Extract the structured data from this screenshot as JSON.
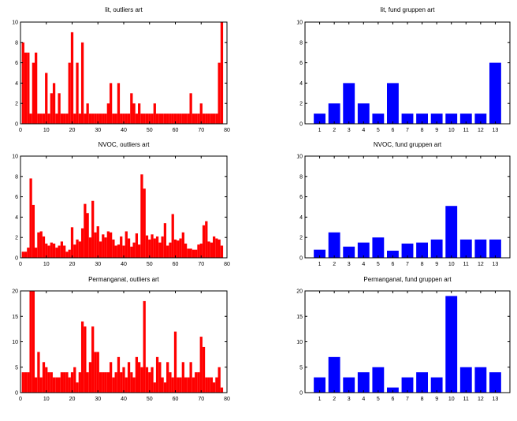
{
  "chart_data": [
    {
      "type": "bar",
      "title": "lit, outliers art",
      "color": "#ff0000",
      "xlim": [
        0,
        80
      ],
      "ylim": [
        0,
        10
      ],
      "xticks": [
        0,
        10,
        20,
        30,
        40,
        50,
        60,
        70,
        80
      ],
      "yticks": [
        0,
        2,
        4,
        6,
        8,
        10
      ],
      "x": [
        1,
        2,
        3,
        4,
        5,
        6,
        7,
        8,
        9,
        10,
        11,
        12,
        13,
        14,
        15,
        16,
        17,
        18,
        19,
        20,
        21,
        22,
        23,
        24,
        25,
        26,
        27,
        28,
        29,
        30,
        31,
        32,
        33,
        34,
        35,
        36,
        37,
        38,
        39,
        40,
        41,
        42,
        43,
        44,
        45,
        46,
        47,
        48,
        49,
        50,
        51,
        52,
        53,
        54,
        55,
        56,
        57,
        58,
        59,
        60,
        61,
        62,
        63,
        64,
        65,
        66,
        67,
        68,
        69,
        70,
        71,
        72,
        73,
        74,
        75,
        76,
        77,
        78
      ],
      "values": [
        8,
        7,
        7,
        1,
        6,
        7,
        1,
        1,
        1,
        5,
        1,
        3,
        4,
        1,
        3,
        1,
        1,
        1,
        6,
        9,
        1,
        6,
        1,
        8,
        1,
        2,
        1,
        1,
        1,
        1,
        1,
        1,
        1,
        2,
        4,
        1,
        1,
        4,
        1,
        1,
        1,
        1,
        3,
        2,
        1,
        2,
        1,
        1,
        1,
        1,
        1,
        2,
        1,
        1,
        1,
        1,
        1,
        1,
        1,
        1,
        1,
        1,
        1,
        1,
        1,
        3,
        1,
        1,
        1,
        2,
        1,
        1,
        1,
        1,
        1,
        1,
        6,
        10
      ]
    },
    {
      "type": "bar",
      "title": "lit, fund gruppen art",
      "color": "#0000ff",
      "xlim": [
        0,
        14
      ],
      "ylim": [
        0,
        10
      ],
      "xticks": [
        1,
        2,
        3,
        4,
        5,
        6,
        7,
        8,
        9,
        10,
        11,
        12,
        13
      ],
      "yticks": [
        0,
        2,
        4,
        6,
        8,
        10
      ],
      "x": [
        1,
        2,
        3,
        4,
        5,
        6,
        7,
        8,
        9,
        10,
        11,
        12,
        13
      ],
      "values": [
        1,
        2,
        4,
        2,
        1,
        4,
        1,
        1,
        1,
        1,
        1,
        1,
        6
      ]
    },
    {
      "type": "bar",
      "title": "NVOC, outliers art",
      "color": "#ff0000",
      "xlim": [
        0,
        80
      ],
      "ylim": [
        0,
        10
      ],
      "xticks": [
        0,
        10,
        20,
        30,
        40,
        50,
        60,
        70,
        80
      ],
      "yticks": [
        0,
        2,
        4,
        6,
        8,
        10
      ],
      "x": [
        1,
        2,
        3,
        4,
        5,
        6,
        7,
        8,
        9,
        10,
        11,
        12,
        13,
        14,
        15,
        16,
        17,
        18,
        19,
        20,
        21,
        22,
        23,
        24,
        25,
        26,
        27,
        28,
        29,
        30,
        31,
        32,
        33,
        34,
        35,
        36,
        37,
        38,
        39,
        40,
        41,
        42,
        43,
        44,
        45,
        46,
        47,
        48,
        49,
        50,
        51,
        52,
        53,
        54,
        55,
        56,
        57,
        58,
        59,
        60,
        61,
        62,
        63,
        64,
        65,
        66,
        67,
        68,
        69,
        70,
        71,
        72,
        73,
        74,
        75,
        76,
        77,
        78
      ],
      "values": [
        0.6,
        0.6,
        1,
        7.8,
        5.2,
        1,
        2.5,
        2.6,
        2.1,
        1.4,
        1.2,
        1.5,
        1.4,
        1,
        1.2,
        1.6,
        1.2,
        0.6,
        0.8,
        3,
        1.3,
        1.8,
        1.6,
        2.9,
        5.3,
        4.4,
        2,
        5.6,
        2.5,
        3.1,
        1.6,
        2.3,
        2,
        2.6,
        2.5,
        1.8,
        1.2,
        1.3,
        2.1,
        1.2,
        2.6,
        1.9,
        1.1,
        1.5,
        2.4,
        1.3,
        8.2,
        6.8,
        2.2,
        1.8,
        2.3,
        1.9,
        2.1,
        1.5,
        2.1,
        3.4,
        1.2,
        1.5,
        4.3,
        1.8,
        1.7,
        1.9,
        2.5,
        1.4,
        0.9,
        0.9,
        0.8,
        0.8,
        1.3,
        1.4,
        3.2,
        3.6,
        1.6,
        1.5,
        2.1,
        1.9,
        1.8,
        1.2
      ]
    },
    {
      "type": "bar",
      "title": "NVOC, fund gruppen art",
      "color": "#0000ff",
      "xlim": [
        0,
        14
      ],
      "ylim": [
        0,
        10
      ],
      "xticks": [
        1,
        2,
        3,
        4,
        5,
        6,
        7,
        8,
        9,
        10,
        11,
        12,
        13
      ],
      "yticks": [
        0,
        2,
        4,
        6,
        8,
        10
      ],
      "x": [
        1,
        2,
        3,
        4,
        5,
        6,
        7,
        8,
        9,
        10,
        11,
        12,
        13
      ],
      "values": [
        0.8,
        2.5,
        1.1,
        1.5,
        2,
        0.7,
        1.4,
        1.5,
        1.8,
        5.1,
        1.8,
        1.8,
        1.8
      ]
    },
    {
      "type": "bar",
      "title": "Permanganat, outliers art",
      "color": "#ff0000",
      "xlim": [
        0,
        80
      ],
      "ylim": [
        0,
        20
      ],
      "xticks": [
        0,
        10,
        20,
        30,
        40,
        50,
        60,
        70,
        80
      ],
      "yticks": [
        0,
        5,
        10,
        15,
        20
      ],
      "x": [
        1,
        2,
        3,
        4,
        5,
        6,
        7,
        8,
        9,
        10,
        11,
        12,
        13,
        14,
        15,
        16,
        17,
        18,
        19,
        20,
        21,
        22,
        23,
        24,
        25,
        26,
        27,
        28,
        29,
        30,
        31,
        32,
        33,
        34,
        35,
        36,
        37,
        38,
        39,
        40,
        41,
        42,
        43,
        44,
        45,
        46,
        47,
        48,
        49,
        50,
        51,
        52,
        53,
        54,
        55,
        56,
        57,
        58,
        59,
        60,
        61,
        62,
        63,
        64,
        65,
        66,
        67,
        68,
        69,
        70,
        71,
        72,
        73,
        74,
        75,
        76,
        77,
        78
      ],
      "values": [
        4,
        4,
        4,
        20,
        20,
        3,
        8,
        3,
        6,
        5,
        4,
        4,
        3,
        3,
        3,
        4,
        4,
        4,
        3,
        4,
        5,
        2,
        4,
        14,
        13,
        4,
        6,
        13,
        8,
        8,
        4,
        4,
        4,
        4,
        6,
        3,
        4,
        7,
        4,
        5,
        3,
        6,
        4,
        3,
        7,
        6,
        5,
        18,
        5,
        4,
        5,
        2,
        7,
        6,
        3,
        2,
        6,
        4,
        3,
        12,
        3,
        3,
        6,
        3,
        3,
        6,
        3,
        4,
        4,
        11,
        9,
        3,
        3,
        3,
        2,
        3,
        5,
        1
      ]
    },
    {
      "type": "bar",
      "title": "Permanganat, fund gruppen art",
      "color": "#0000ff",
      "xlim": [
        0,
        14
      ],
      "ylim": [
        0,
        20
      ],
      "xticks": [
        1,
        2,
        3,
        4,
        5,
        6,
        7,
        8,
        9,
        10,
        11,
        12,
        13
      ],
      "yticks": [
        0,
        5,
        10,
        15,
        20
      ],
      "x": [
        1,
        2,
        3,
        4,
        5,
        6,
        7,
        8,
        9,
        10,
        11,
        12,
        13
      ],
      "values": [
        3,
        7,
        3,
        4,
        5,
        1,
        3,
        4,
        3,
        19,
        5,
        5,
        4
      ]
    }
  ]
}
